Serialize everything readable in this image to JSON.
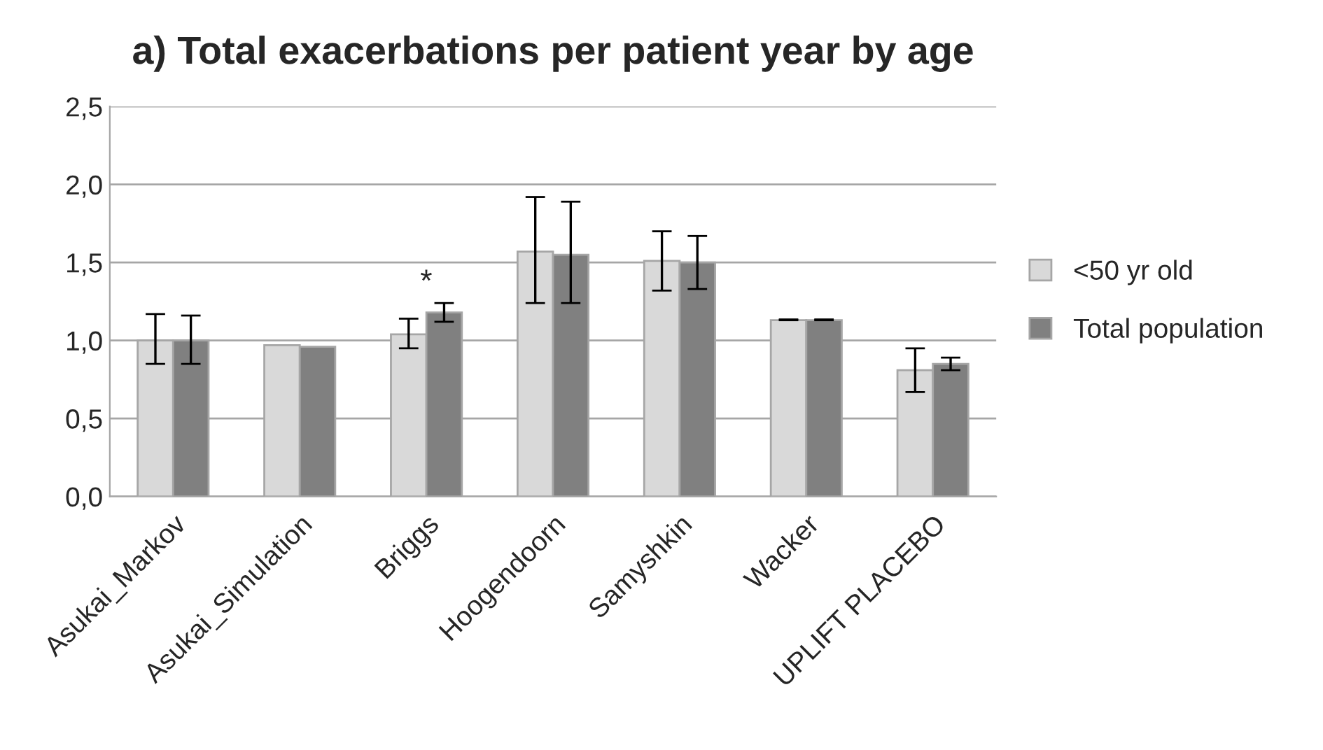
{
  "chart_data": {
    "type": "bar",
    "title": "a) Total exacerbations per patient year by age",
    "categories": [
      "Asukai_Markov",
      "Asukai_Simulation",
      "Briggs",
      "Hoogendoorn",
      "Samyshkin",
      "Wacker",
      "UPLIFT PLACEBO"
    ],
    "series": [
      {
        "name": "<50 yr old",
        "color": "#d9d9d9",
        "values": [
          1.0,
          0.97,
          1.04,
          1.57,
          1.51,
          1.13,
          0.81
        ],
        "errors": [
          [
            0.85,
            1.17
          ],
          null,
          [
            0.95,
            1.14
          ],
          [
            1.24,
            1.92
          ],
          [
            1.32,
            1.7
          ],
          [
            1.13,
            1.135
          ],
          [
            0.67,
            0.95
          ]
        ]
      },
      {
        "name": "Total population",
        "color": "#808080",
        "values": [
          1.0,
          0.96,
          1.18,
          1.55,
          1.5,
          1.13,
          0.85
        ],
        "errors": [
          [
            0.85,
            1.16
          ],
          null,
          [
            1.12,
            1.24
          ],
          [
            1.24,
            1.89
          ],
          [
            1.33,
            1.67
          ],
          [
            1.13,
            1.135
          ],
          [
            0.81,
            0.89
          ]
        ]
      }
    ],
    "ylim": [
      0,
      2.5
    ],
    "yticks": [
      {
        "value": 0,
        "label": "0,0"
      },
      {
        "value": 0.5,
        "label": "0,5"
      },
      {
        "value": 1.0,
        "label": "1,0"
      },
      {
        "value": 1.5,
        "label": "1,5"
      },
      {
        "value": 2.0,
        "label": "2,0"
      },
      {
        "value": 2.5,
        "label": "2,5"
      }
    ],
    "grid": "y",
    "legend": "right",
    "annotations": [
      "*"
    ]
  }
}
